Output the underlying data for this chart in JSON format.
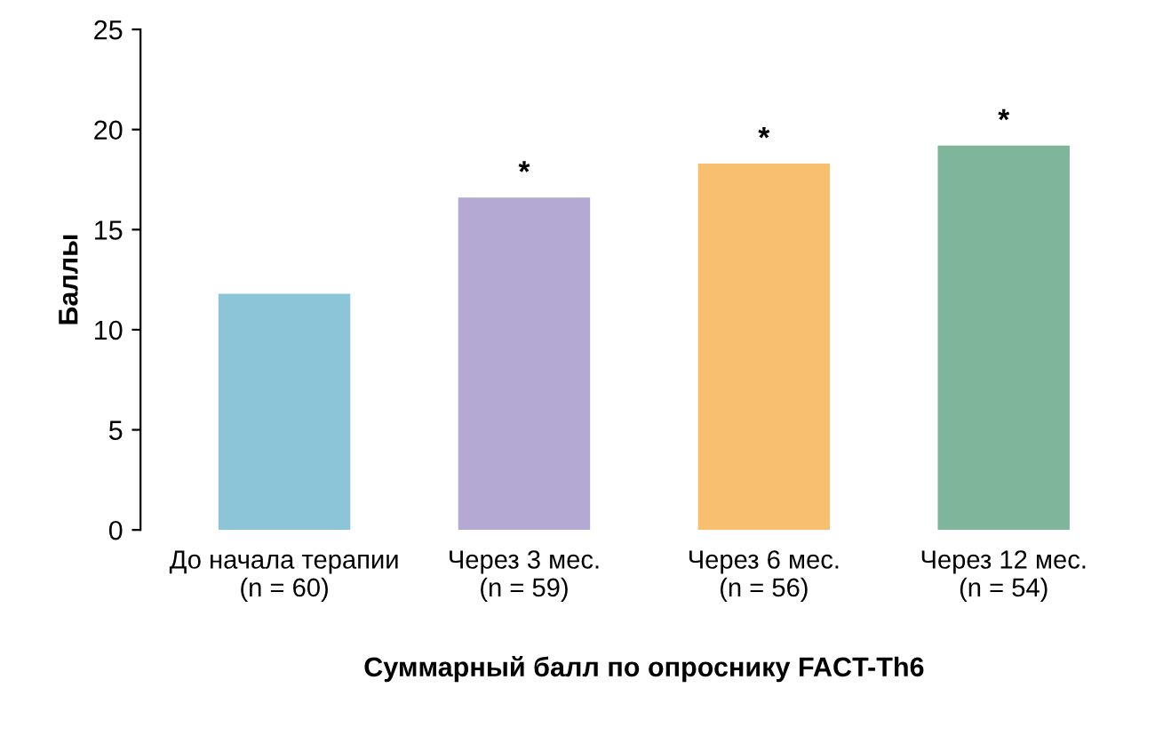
{
  "chart_data": {
    "type": "bar",
    "xlabel": "Суммарный балл по опроснику FACT-Th6",
    "ylabel": "Баллы",
    "categories": [
      "До начала терапии\n(n = 60)",
      "Через 3 мес.\n(n = 59)",
      "Через 6 мес.\n(n = 56)",
      "Через 12 мес.\n(n = 54)"
    ],
    "values": [
      11.8,
      16.6,
      18.3,
      19.2
    ],
    "colors": [
      "#8cc4d8",
      "#b3a9d2",
      "#f8c06e",
      "#7fb59a"
    ],
    "ylim": [
      0,
      25
    ],
    "yticks": [
      0,
      5,
      10,
      15,
      20,
      25
    ],
    "grid": false,
    "annotations": [
      {
        "text": "*",
        "x": "Через 3 мес.\n(n = 59)",
        "y": 16.6
      },
      {
        "text": "*",
        "x": "Через 6 мес.\n(n = 56)",
        "y": 18.3
      },
      {
        "text": "*",
        "x": "Через 12 мес.\n(n = 54)",
        "y": 19.2
      }
    ]
  }
}
